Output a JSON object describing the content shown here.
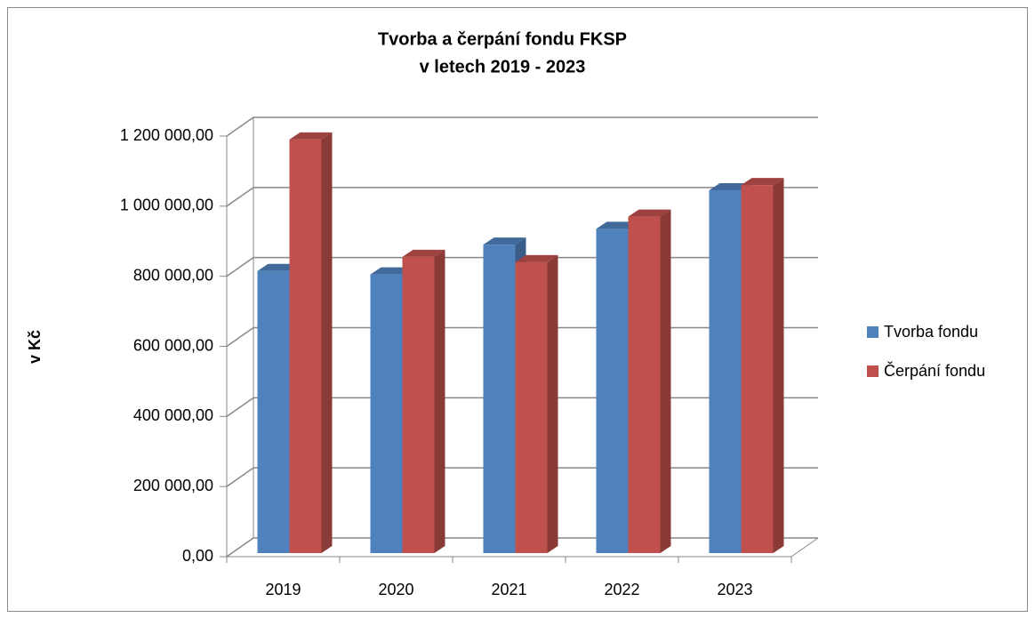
{
  "chart_data": {
    "type": "bar3d",
    "title": "Tvorba a čerpání fondu FKSP",
    "subtitle": "v letech 2019 - 2023",
    "y_label": "v Kč",
    "categories": [
      "2019",
      "2020",
      "2021",
      "2022",
      "2023"
    ],
    "series": [
      {
        "name": "Tvorba fondu",
        "color": "#4f81bd",
        "values": [
          805000,
          795000,
          880000,
          925000,
          1035000
        ]
      },
      {
        "name": "Čerpání fondu",
        "color": "#c0504d",
        "values": [
          1180000,
          845000,
          830000,
          960000,
          1050000
        ]
      }
    ],
    "ylim": [
      0,
      1200000
    ],
    "yticks": [
      {
        "value": 0,
        "label": "0,00"
      },
      {
        "value": 200000,
        "label": "200 000,00"
      },
      {
        "value": 400000,
        "label": "400 000,00"
      },
      {
        "value": 600000,
        "label": "600 000,00"
      },
      {
        "value": 800000,
        "label": "800 000,00"
      },
      {
        "value": 1000000,
        "label": "1 000 000,00"
      },
      {
        "value": 1200000,
        "label": "1 200 000,00"
      }
    ],
    "grid": true,
    "legend": "right"
  }
}
